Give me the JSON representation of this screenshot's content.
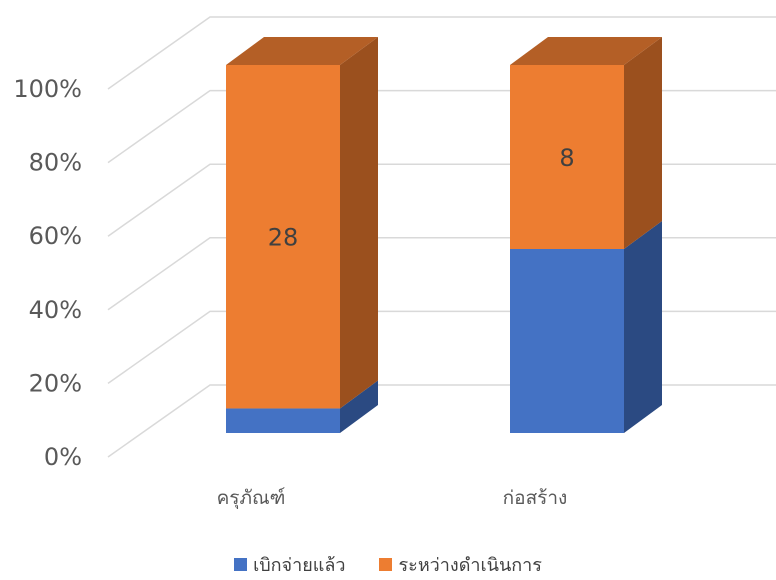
{
  "chart_data": {
    "type": "bar",
    "stacked": true,
    "percent": true,
    "three_d": true,
    "categories": [
      "ครุภัณฑ์",
      "ก่อสร้าง"
    ],
    "series": [
      {
        "name": "เบิกจ่ายแล้ว",
        "values": [
          2,
          8
        ],
        "data_labels": [
          "",
          ""
        ],
        "color": "#4472C4",
        "side_color": "#2B4A82",
        "top_color": "#34599A"
      },
      {
        "name": "ระหว่างดำเนินการ",
        "values": [
          28,
          8
        ],
        "data_labels": [
          "28",
          "8"
        ],
        "color": "#ED7D31",
        "side_color": "#9B501E",
        "top_color": "#B45F26"
      }
    ],
    "yticks": [
      "0%",
      "20%",
      "40%",
      "60%",
      "80%",
      "100%"
    ],
    "ylim": [
      0,
      100
    ],
    "grid": true,
    "legend_position": "bottom",
    "gridline_color": "#D9D9D9",
    "text_color": "#595959"
  }
}
